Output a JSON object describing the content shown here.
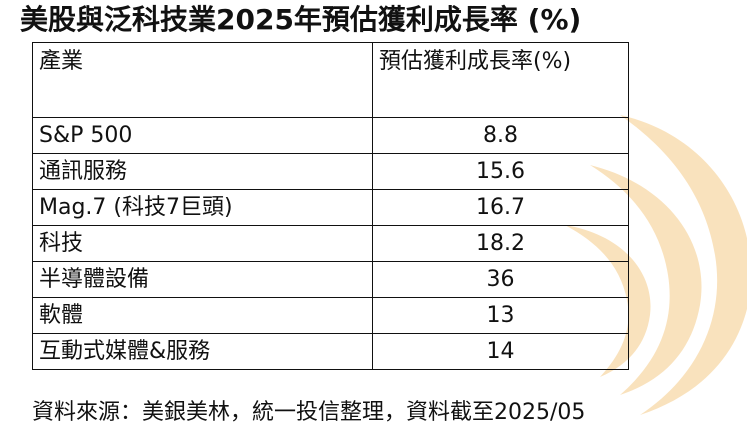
{
  "title": "美股與泛科技業2025年預估獲利成長率 (%)",
  "table": {
    "headers": {
      "industry": "產業",
      "value": "預估獲利成長率(%)"
    },
    "rows": [
      {
        "industry": "S&P 500",
        "value": "8.8"
      },
      {
        "industry": "通訊服務",
        "value": "15.6"
      },
      {
        "industry": "Mag.7 (科技7巨頭)",
        "value": "16.7"
      },
      {
        "industry": "科技",
        "value": "18.2"
      },
      {
        "industry": "半導體設備",
        "value": "36"
      },
      {
        "industry": "軟體",
        "value": "13"
      },
      {
        "industry": "互動式媒體&服務",
        "value": "14"
      }
    ]
  },
  "source": "資料來源：美銀美林，統一投信整理，資料截至2025/05",
  "colors": {
    "watermark": "#f8d9a8",
    "border": "#111111",
    "text": "#111111"
  }
}
